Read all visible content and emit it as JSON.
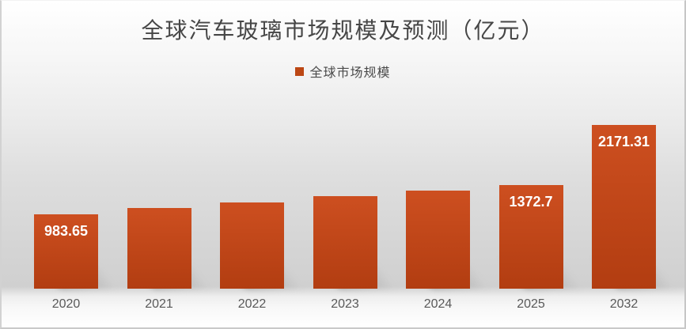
{
  "chart_data": {
    "type": "bar",
    "title": "全球汽车玻璃市场规模及预测（亿元）",
    "legend": {
      "position": "top",
      "entries": [
        "全球市场规模"
      ]
    },
    "categories": [
      "2020",
      "2021",
      "2022",
      "2023",
      "2024",
      "2025",
      "2032"
    ],
    "series": [
      {
        "name": "全球市场规模",
        "values": [
          983.65,
          1075,
          1145,
          1225,
          1300,
          1372.7,
          2171.31
        ],
        "data_labels": [
          "983.65",
          null,
          null,
          null,
          null,
          "1372.7",
          "2171.31"
        ]
      }
    ],
    "ylim": [
      0,
      2300
    ],
    "xlabel": "",
    "ylabel": "",
    "grid": false,
    "y_axis_visible": false,
    "legend_visible": true,
    "colors": {
      "bar_top": "#cd4f20",
      "bar_bottom": "#b23d11",
      "legend_swatch": "#bc4714",
      "data_label_text": "#ffffff",
      "tick_text": "#595959",
      "title_text": "#464646"
    }
  }
}
